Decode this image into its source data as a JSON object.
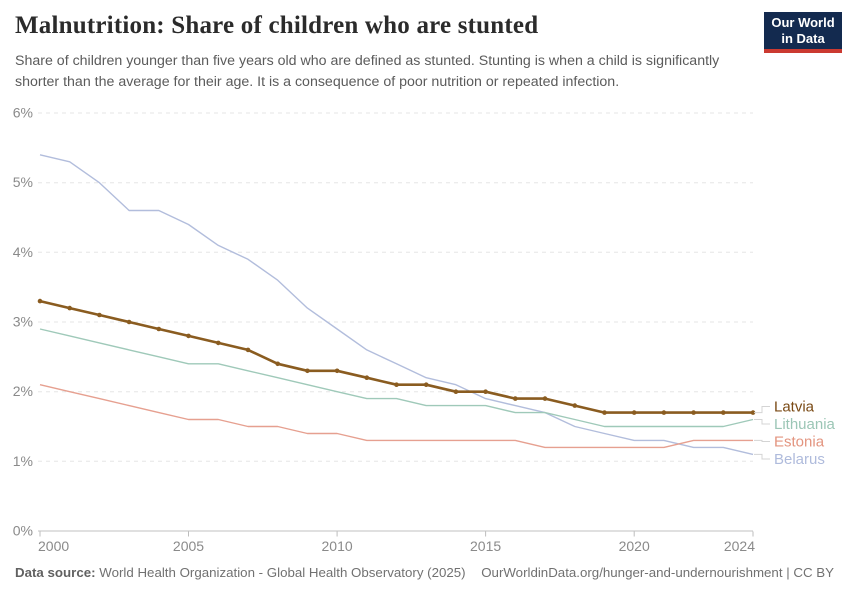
{
  "header": {
    "title": "Malnutrition: Share of children who are stunted",
    "subtitle": "Share of children younger than five years old who are defined as stunted. Stunting is when a child is significantly shorter than the average for their age. It is a consequence of poor nutrition or repeated infection.",
    "logo": {
      "line1": "Our World",
      "line2": "in Data",
      "bg_color": "#132a4f",
      "accent_color": "#cb3a31"
    }
  },
  "chart_data": {
    "type": "line",
    "title": "Malnutrition: Share of children who are stunted",
    "xlabel": "",
    "ylabel": "",
    "xlim": [
      2000,
      2024
    ],
    "ylim": [
      0,
      6
    ],
    "grid": "horizontal-dashed",
    "legend_position": "right-of-lines",
    "y_suffix": "%",
    "y_ticks": [
      0,
      1,
      2,
      3,
      4,
      5,
      6
    ],
    "x_ticks": [
      2000,
      2005,
      2010,
      2015,
      2020,
      2024
    ],
    "x": [
      2000,
      2001,
      2002,
      2003,
      2004,
      2005,
      2006,
      2007,
      2008,
      2009,
      2010,
      2011,
      2012,
      2013,
      2014,
      2015,
      2016,
      2017,
      2018,
      2019,
      2020,
      2021,
      2022,
      2023,
      2024
    ],
    "series": [
      {
        "name": "Latvia",
        "color": "#8a5c20",
        "label_color": "#7a4a15",
        "line_width": 2.6,
        "markers": true,
        "values": [
          3.3,
          3.2,
          3.1,
          3.0,
          2.9,
          2.8,
          2.7,
          2.6,
          2.4,
          2.3,
          2.3,
          2.2,
          2.1,
          2.1,
          2.0,
          2.0,
          1.9,
          1.9,
          1.8,
          1.7,
          1.7,
          1.7,
          1.7,
          1.7,
          1.7
        ]
      },
      {
        "name": "Lithuania",
        "color": "#9fc9b9",
        "label_color": "#9cc6b6",
        "line_width": 1.4,
        "markers": false,
        "values": [
          2.9,
          2.8,
          2.7,
          2.6,
          2.5,
          2.4,
          2.4,
          2.3,
          2.2,
          2.1,
          2.0,
          1.9,
          1.9,
          1.8,
          1.8,
          1.8,
          1.7,
          1.7,
          1.6,
          1.5,
          1.5,
          1.5,
          1.5,
          1.5,
          1.6
        ]
      },
      {
        "name": "Estonia",
        "color": "#e6a090",
        "label_color": "#e3947f",
        "line_width": 1.4,
        "markers": false,
        "values": [
          2.1,
          2.0,
          1.9,
          1.8,
          1.7,
          1.6,
          1.6,
          1.5,
          1.5,
          1.4,
          1.4,
          1.3,
          1.3,
          1.3,
          1.3,
          1.3,
          1.3,
          1.2,
          1.2,
          1.2,
          1.2,
          1.2,
          1.3,
          1.3,
          1.3
        ]
      },
      {
        "name": "Belarus",
        "color": "#b2bddc",
        "label_color": "#afbbdc",
        "line_width": 1.4,
        "markers": false,
        "values": [
          5.4,
          5.3,
          5.0,
          4.6,
          4.6,
          4.4,
          4.1,
          3.9,
          3.6,
          3.2,
          2.9,
          2.6,
          2.4,
          2.2,
          2.1,
          1.9,
          1.8,
          1.7,
          1.5,
          1.4,
          1.3,
          1.3,
          1.2,
          1.2,
          1.1
        ]
      }
    ]
  },
  "footer": {
    "source_label": "Data source:",
    "source_value": "World Health Organization - Global Health Observatory (2025)",
    "credit": "OurWorldinData.org/hunger-and-undernourishment | CC BY"
  }
}
